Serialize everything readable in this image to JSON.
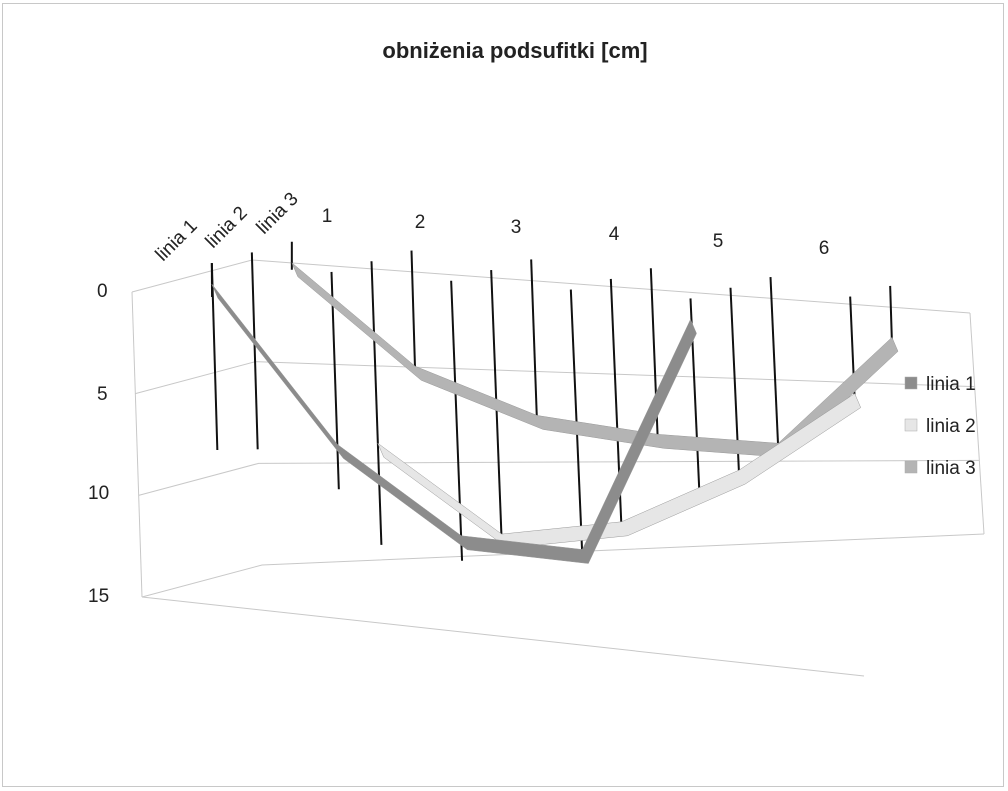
{
  "chart_data": {
    "type": "line",
    "title": "obniżenia podsufitki [cm]",
    "categories": [
      "1",
      "2",
      "3",
      "4",
      "5",
      "6"
    ],
    "depth_labels": [
      "linia 1",
      "linia 2",
      "linia 3"
    ],
    "y_ticks": [
      "0",
      "5",
      "10",
      "15"
    ],
    "ylim": [
      0,
      15
    ],
    "y_reversed": true,
    "grid": true,
    "legend_position": "right",
    "series": [
      {
        "name": "linia 1",
        "color": "#8c8c8c",
        "values": [
          0,
          8,
          13,
          14,
          0,
          null
        ]
      },
      {
        "name": "linia 2",
        "color": "#e6e6e6",
        "values": [
          null,
          8.5,
          13.5,
          13,
          10,
          5
        ]
      },
      {
        "name": "linia 3",
        "color": "#b4b4b4",
        "values": [
          0,
          5,
          7.5,
          8.5,
          9,
          2
        ]
      }
    ],
    "stems": [
      {
        "series": 0,
        "category": 0,
        "top": 0,
        "bottom": 0.3
      },
      {
        "series": 0,
        "category": 0,
        "top": 0,
        "bottom": 8
      },
      {
        "series": 0,
        "category": 1,
        "top": 0,
        "bottom": 10
      },
      {
        "series": 0,
        "category": 2,
        "top": 0,
        "bottom": 14
      },
      {
        "series": 0,
        "category": 3,
        "top": 0,
        "bottom": 14
      },
      {
        "series": 0,
        "category": 4,
        "top": 0,
        "bottom": 10
      },
      {
        "series": 1,
        "category": 0,
        "top": 0,
        "bottom": 8.5
      },
      {
        "series": 1,
        "category": 1,
        "top": 0,
        "bottom": 13.5
      },
      {
        "series": 1,
        "category": 2,
        "top": 0,
        "bottom": 13.5
      },
      {
        "series": 1,
        "category": 3,
        "top": 0,
        "bottom": 13
      },
      {
        "series": 1,
        "category": 4,
        "top": 0,
        "bottom": 10
      },
      {
        "series": 1,
        "category": 5,
        "top": 0,
        "bottom": 5
      },
      {
        "series": 2,
        "category": 0,
        "top": 0,
        "bottom": 0
      },
      {
        "series": 2,
        "category": 1,
        "top": 0,
        "bottom": 5
      },
      {
        "series": 2,
        "category": 2,
        "top": 0,
        "bottom": 7.5
      },
      {
        "series": 2,
        "category": 3,
        "top": 0,
        "bottom": 8.5
      },
      {
        "series": 2,
        "category": 4,
        "top": 0,
        "bottom": 9
      },
      {
        "series": 2,
        "category": 5,
        "top": 0,
        "bottom": 2
      }
    ]
  }
}
